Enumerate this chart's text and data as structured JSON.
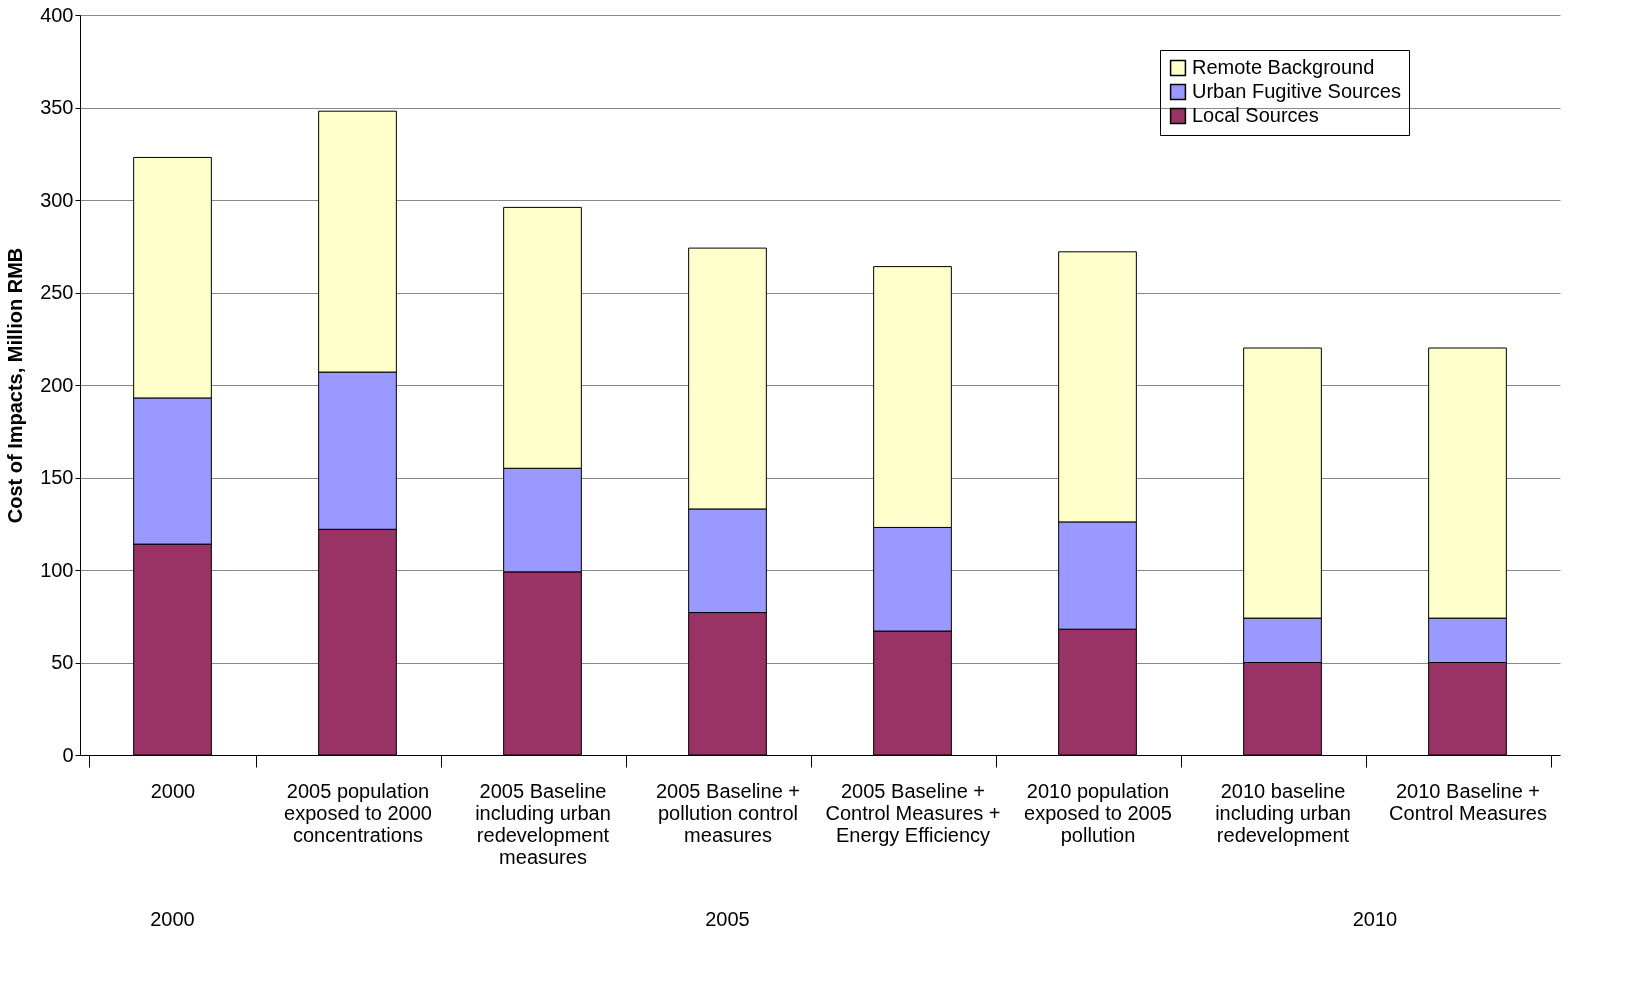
{
  "chart_data": {
    "type": "bar",
    "stacked": true,
    "ylabel": "Cost of Impacts, Million RMB",
    "categories": [
      "2000",
      "2005 population exposed to 2000 concentrations",
      "2005 Baseline including urban redevelopment measures",
      "2005 Baseline + pollution control measures",
      "2005 Baseline + Control Measures + Energy Efficiency",
      "2010 population exposed to 2005 pollution",
      "2010 baseline including urban redevelopment",
      "2010 Baseline + Control Measures"
    ],
    "series": [
      {
        "name": "Local Sources",
        "color": "#993366",
        "values": [
          114,
          122,
          99,
          77,
          67,
          68,
          50,
          50
        ]
      },
      {
        "name": "Urban Fugitive Sources",
        "color": "#9999ff",
        "values": [
          79,
          85,
          56,
          56,
          56,
          58,
          24,
          24
        ]
      },
      {
        "name": "Remote Background",
        "color": "#ffffcc",
        "values": [
          130,
          141,
          141,
          141,
          141,
          146,
          146,
          146
        ]
      }
    ],
    "ylim": [
      0,
      400
    ],
    "yticks": [
      0,
      50,
      100,
      150,
      200,
      250,
      300,
      350,
      400
    ],
    "grid": "y",
    "legend": "top right",
    "annotations": [
      "2000",
      "2005",
      "2010"
    ]
  }
}
